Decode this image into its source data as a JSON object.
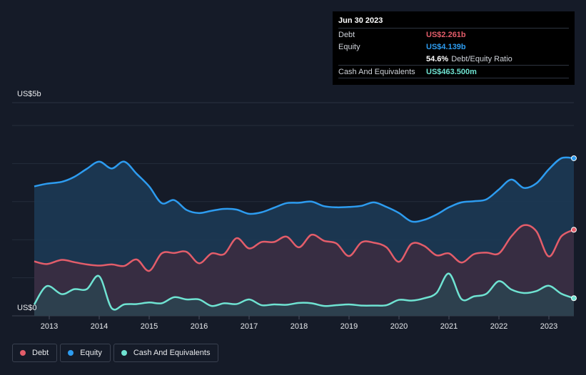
{
  "tooltip": {
    "date": "Jun 30 2023",
    "rows": [
      {
        "label": "Debt",
        "value": "US$2.261b",
        "color": "#e35d6a"
      },
      {
        "label": "Equity",
        "value": "US$4.139b",
        "color": "#2d9cf0"
      },
      {
        "label": "",
        "value": "54.6%",
        "sub": "Debt/Equity Ratio",
        "color": "#ffffff"
      },
      {
        "label": "Cash And Equivalents",
        "value": "US$463.500m",
        "color": "#6fe3d2"
      }
    ]
  },
  "legend": [
    {
      "label": "Debt",
      "color": "#e35d6a"
    },
    {
      "label": "Equity",
      "color": "#2d9cf0"
    },
    {
      "label": "Cash And Equivalents",
      "color": "#6fe3d2"
    }
  ],
  "chart_data": {
    "type": "area",
    "title": "",
    "xlabel": "",
    "ylabel": "",
    "y_top_label": "US$5b",
    "y_bottom_label": "US$0",
    "ylim": [
      0,
      5
    ],
    "xlim": [
      2012.7,
      2023.5
    ],
    "x_ticks": [
      "2013",
      "2014",
      "2015",
      "2016",
      "2017",
      "2018",
      "2019",
      "2020",
      "2021",
      "2022",
      "2023"
    ],
    "series": [
      {
        "name": "Equity",
        "color": "#2d9cf0",
        "x": [
          2012.7,
          2012.95,
          2013.25,
          2013.5,
          2013.75,
          2014.0,
          2014.25,
          2014.5,
          2014.75,
          2015.0,
          2015.25,
          2015.5,
          2015.75,
          2016.0,
          2016.25,
          2016.5,
          2016.75,
          2017.0,
          2017.25,
          2017.5,
          2017.75,
          2018.0,
          2018.25,
          2018.5,
          2018.75,
          2019.0,
          2019.25,
          2019.5,
          2019.75,
          2020.0,
          2020.25,
          2020.5,
          2020.75,
          2021.0,
          2021.25,
          2021.5,
          2021.75,
          2022.0,
          2022.25,
          2022.5,
          2022.75,
          2023.0,
          2023.25,
          2023.5
        ],
        "values": [
          3.4,
          3.47,
          3.52,
          3.65,
          3.86,
          4.05,
          3.87,
          4.05,
          3.73,
          3.4,
          2.96,
          3.04,
          2.78,
          2.7,
          2.76,
          2.81,
          2.79,
          2.68,
          2.72,
          2.84,
          2.96,
          2.97,
          3.0,
          2.88,
          2.85,
          2.86,
          2.89,
          2.98,
          2.86,
          2.7,
          2.48,
          2.52,
          2.66,
          2.85,
          2.98,
          3.01,
          3.06,
          3.32,
          3.58,
          3.36,
          3.48,
          3.85,
          4.14,
          4.139
        ]
      },
      {
        "name": "Debt",
        "color": "#e35d6a",
        "x": [
          2012.7,
          2012.95,
          2013.25,
          2013.5,
          2013.75,
          2014.0,
          2014.25,
          2014.5,
          2014.75,
          2015.0,
          2015.25,
          2015.5,
          2015.75,
          2016.0,
          2016.25,
          2016.5,
          2016.75,
          2017.0,
          2017.25,
          2017.5,
          2017.75,
          2018.0,
          2018.25,
          2018.5,
          2018.75,
          2019.0,
          2019.25,
          2019.5,
          2019.75,
          2020.0,
          2020.25,
          2020.5,
          2020.75,
          2021.0,
          2021.25,
          2021.5,
          2021.75,
          2022.0,
          2022.25,
          2022.5,
          2022.75,
          2023.0,
          2023.25,
          2023.5
        ],
        "values": [
          1.43,
          1.36,
          1.47,
          1.41,
          1.35,
          1.32,
          1.35,
          1.31,
          1.48,
          1.18,
          1.64,
          1.65,
          1.68,
          1.38,
          1.64,
          1.62,
          2.04,
          1.77,
          1.94,
          1.94,
          2.08,
          1.8,
          2.13,
          1.97,
          1.9,
          1.57,
          1.93,
          1.92,
          1.8,
          1.42,
          1.89,
          1.84,
          1.59,
          1.64,
          1.4,
          1.62,
          1.66,
          1.64,
          2.09,
          2.38,
          2.22,
          1.56,
          2.09,
          2.261
        ]
      },
      {
        "name": "Cash And Equivalents",
        "color": "#6fe3d2",
        "x": [
          2012.7,
          2012.95,
          2013.25,
          2013.5,
          2013.75,
          2014.0,
          2014.25,
          2014.5,
          2014.75,
          2015.0,
          2015.25,
          2015.5,
          2015.75,
          2016.0,
          2016.25,
          2016.5,
          2016.75,
          2017.0,
          2017.25,
          2017.5,
          2017.75,
          2018.0,
          2018.25,
          2018.5,
          2018.75,
          2019.0,
          2019.25,
          2019.5,
          2019.75,
          2020.0,
          2020.25,
          2020.5,
          2020.75,
          2021.0,
          2021.25,
          2021.5,
          2021.75,
          2022.0,
          2022.25,
          2022.5,
          2022.75,
          2023.0,
          2023.25,
          2023.5
        ],
        "values": [
          0.3,
          0.78,
          0.57,
          0.7,
          0.7,
          1.04,
          0.2,
          0.3,
          0.31,
          0.35,
          0.33,
          0.49,
          0.43,
          0.43,
          0.26,
          0.33,
          0.31,
          0.43,
          0.28,
          0.3,
          0.29,
          0.34,
          0.33,
          0.26,
          0.28,
          0.3,
          0.27,
          0.27,
          0.28,
          0.42,
          0.4,
          0.46,
          0.6,
          1.11,
          0.44,
          0.51,
          0.58,
          0.91,
          0.69,
          0.6,
          0.65,
          0.79,
          0.58,
          0.4635
        ]
      }
    ]
  }
}
